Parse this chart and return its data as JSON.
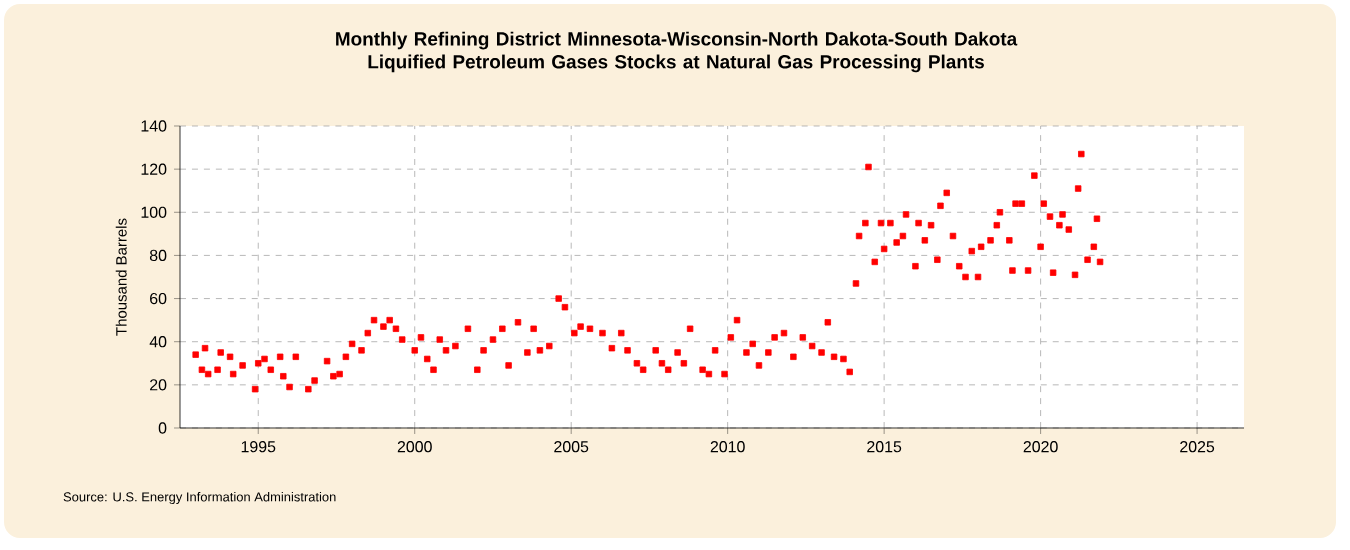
{
  "chart_data": {
    "type": "scatter",
    "title": "Monthly Refining District Minnesota-Wisconsin-North Dakota-South Dakota Liquified Petroleum Gases Stocks at Natural Gas Processing Plants",
    "ylabel": "Thousand Barrels",
    "annotations": [
      "Source: U.S. Energy Information Administration"
    ],
    "x": [
      1993.0,
      1993.2,
      1993.3,
      1993.4,
      1993.7,
      1993.8,
      1994.1,
      1994.2,
      1994.5,
      1994.9,
      1995.0,
      1995.2,
      1995.4,
      1995.7,
      1995.8,
      1996.0,
      1996.2,
      1996.6,
      1996.8,
      1997.2,
      1997.4,
      1997.6,
      1997.8,
      1998.0,
      1998.3,
      1998.5,
      1998.7,
      1999.0,
      1999.2,
      1999.4,
      1999.6,
      2000.0,
      2000.2,
      2000.4,
      2000.6,
      2000.8,
      2001.0,
      2001.3,
      2001.7,
      2002.0,
      2002.2,
      2002.5,
      2002.8,
      2003.0,
      2003.3,
      2003.6,
      2003.8,
      2004.0,
      2004.3,
      2004.6,
      2004.8,
      2005.1,
      2005.3,
      2005.6,
      2006.0,
      2006.3,
      2006.6,
      2006.8,
      2007.1,
      2007.3,
      2007.7,
      2007.9,
      2008.1,
      2008.4,
      2008.6,
      2008.8,
      2009.2,
      2009.4,
      2009.6,
      2009.9,
      2010.1,
      2010.3,
      2010.6,
      2010.8,
      2011.0,
      2011.3,
      2011.5,
      2011.8,
      2012.1,
      2012.4,
      2012.7,
      2013.0,
      2013.2,
      2013.4,
      2013.7,
      2013.9,
      2014.1,
      2014.2,
      2014.4,
      2014.5,
      2014.7,
      2014.9,
      2015.0,
      2015.2,
      2015.4,
      2015.6,
      2015.7,
      2016.0,
      2016.1,
      2016.3,
      2016.5,
      2016.7,
      2016.8,
      2017.0,
      2017.2,
      2017.4,
      2017.6,
      2017.8,
      2018.0,
      2018.1,
      2018.4,
      2018.6,
      2018.7,
      2019.0,
      2019.1,
      2019.2,
      2019.4,
      2019.6,
      2019.8,
      2020.0,
      2020.1,
      2020.3,
      2020.4,
      2020.6,
      2020.7,
      2020.9,
      2021.1,
      2021.2,
      2021.3,
      2021.5,
      2021.7,
      2021.8,
      2021.9
    ],
    "values": [
      34,
      27,
      37,
      25,
      27,
      35,
      33,
      25,
      29,
      18,
      30,
      32,
      27,
      33,
      24,
      19,
      33,
      18,
      22,
      31,
      24,
      25,
      33,
      39,
      36,
      44,
      50,
      47,
      50,
      46,
      41,
      36,
      42,
      32,
      27,
      41,
      36,
      38,
      46,
      27,
      36,
      41,
      46,
      29,
      49,
      35,
      46,
      36,
      38,
      60,
      56,
      44,
      47,
      46,
      44,
      37,
      44,
      36,
      30,
      27,
      36,
      30,
      27,
      35,
      30,
      46,
      27,
      25,
      36,
      25,
      42,
      50,
      35,
      39,
      29,
      35,
      42,
      44,
      33,
      42,
      38,
      35,
      49,
      33,
      32,
      26,
      67,
      89,
      95,
      121,
      77,
      95,
      83,
      95,
      86,
      89,
      99,
      75,
      95,
      87,
      94,
      78,
      103,
      109,
      89,
      75,
      70,
      82,
      70,
      84,
      87,
      94,
      100,
      87,
      73,
      104,
      104,
      73,
      117,
      84,
      104,
      98,
      72,
      94,
      99,
      92,
      71,
      111,
      127,
      78,
      84,
      97,
      77
    ],
    "color": "#ff0000",
    "marker": "square",
    "xlim": [
      1992.5,
      2026.5
    ],
    "xticks": [
      1995,
      2000,
      2005,
      2010,
      2015,
      2020,
      2025
    ],
    "ylim": [
      0,
      140
    ],
    "yticks": [
      0,
      20,
      40,
      60,
      80,
      100,
      120,
      140
    ],
    "grid": true
  }
}
